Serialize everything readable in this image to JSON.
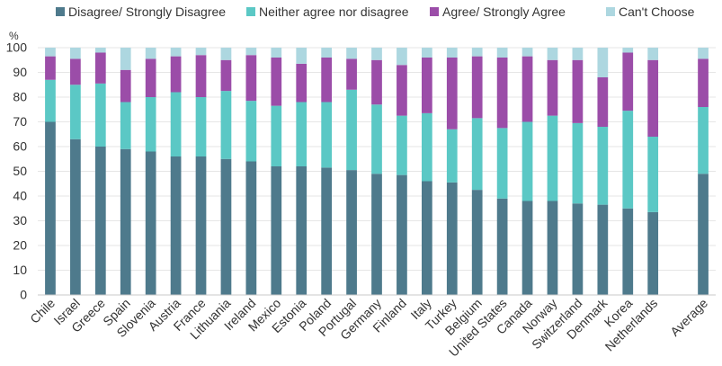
{
  "chart_data": {
    "type": "bar",
    "stacked": true,
    "ylabel": "%",
    "ylim": [
      0,
      100
    ],
    "yticks": [
      0,
      10,
      20,
      30,
      40,
      50,
      60,
      70,
      80,
      90,
      100
    ],
    "grid": true,
    "legend_position": "top",
    "categories": [
      "Chile",
      "Israel",
      "Greece",
      "Spain",
      "Slovenia",
      "Austria",
      "France",
      "Lithuania",
      "Ireland",
      "Mexico",
      "Estonia",
      "Poland",
      "Portugal",
      "Germany",
      "Finland",
      "Italy",
      "Turkey",
      "Belgium",
      "United States",
      "Canada",
      "Norway",
      "Switzerland",
      "Denmark",
      "Korea",
      "Netherlands",
      "",
      "Average"
    ],
    "series": [
      {
        "name": "Disagree/ Strongly Disagree",
        "color": "#4e7a8c",
        "values": [
          70,
          63,
          60,
          59,
          58,
          56,
          56,
          55,
          54,
          52,
          52,
          51.5,
          50.5,
          49,
          48.5,
          46,
          45.5,
          42.5,
          39,
          38,
          38,
          37,
          36.5,
          35,
          33.5,
          null,
          49
        ]
      },
      {
        "name": "Neither agree nor disagree",
        "color": "#5bc8c5",
        "values": [
          17,
          22,
          25.5,
          19,
          22,
          26,
          24,
          27.5,
          24.5,
          24.5,
          26,
          26.5,
          32.5,
          28,
          24,
          27.5,
          21.5,
          29,
          28.5,
          32,
          34.5,
          32.5,
          31.5,
          39.5,
          30.5,
          null,
          27
        ]
      },
      {
        "name": "Agree/ Strongly Agree",
        "color": "#9b4da8",
        "values": [
          9.5,
          10.5,
          12.5,
          13,
          15.5,
          14.5,
          17,
          12.5,
          18.5,
          19.5,
          15.5,
          18,
          12.5,
          18,
          20.5,
          22.5,
          29,
          25,
          28.5,
          26.5,
          22.5,
          25.5,
          20,
          23.5,
          31,
          null,
          19.5
        ]
      },
      {
        "name": "Can't Choose",
        "color": "#add7e0",
        "values": [
          3.5,
          4.5,
          2,
          9,
          4.5,
          3.5,
          3,
          5,
          3,
          4,
          6.5,
          4,
          4.5,
          5,
          7,
          4,
          4,
          3.5,
          4,
          3.5,
          5,
          5,
          12,
          2,
          5,
          null,
          4.5
        ]
      }
    ]
  }
}
